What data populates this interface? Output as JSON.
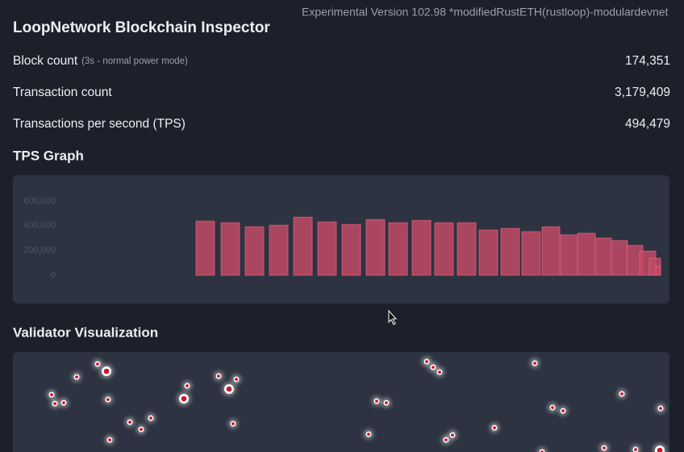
{
  "header": {
    "version": "Experimental Version 102.98 *modifiedRustETH(rustloop)-modulardevnet",
    "title": "LoopNetwork Blockchain Inspector"
  },
  "stats": [
    {
      "label": "Block count",
      "note": "(3s - normal power mode)",
      "value": "174,351"
    },
    {
      "label": "Transaction count",
      "value": "3,179,409"
    },
    {
      "label": "Transactions per second (TPS)",
      "value": "494,479"
    }
  ],
  "chart_data": {
    "type": "bar",
    "title": "TPS Graph",
    "values": [
      437000,
      424000,
      391000,
      404000,
      469000,
      430000,
      410000,
      450000,
      424000,
      443000,
      424000,
      424000,
      365000,
      378000,
      352000,
      391000,
      326000,
      339000,
      300000,
      280000,
      241000,
      195000,
      137000,
      72000
    ],
    "color": "#c24a66",
    "ylim": [
      0,
      600000
    ],
    "yticks": [
      0,
      {
        "value": 200000,
        "label": "200,000"
      },
      {
        "value": 400000,
        "label": "400,000"
      },
      {
        "value": 600000,
        "label": "600,000"
      }
    ],
    "grid": false
  },
  "validators": {
    "title": "Validator Visualization"
  }
}
